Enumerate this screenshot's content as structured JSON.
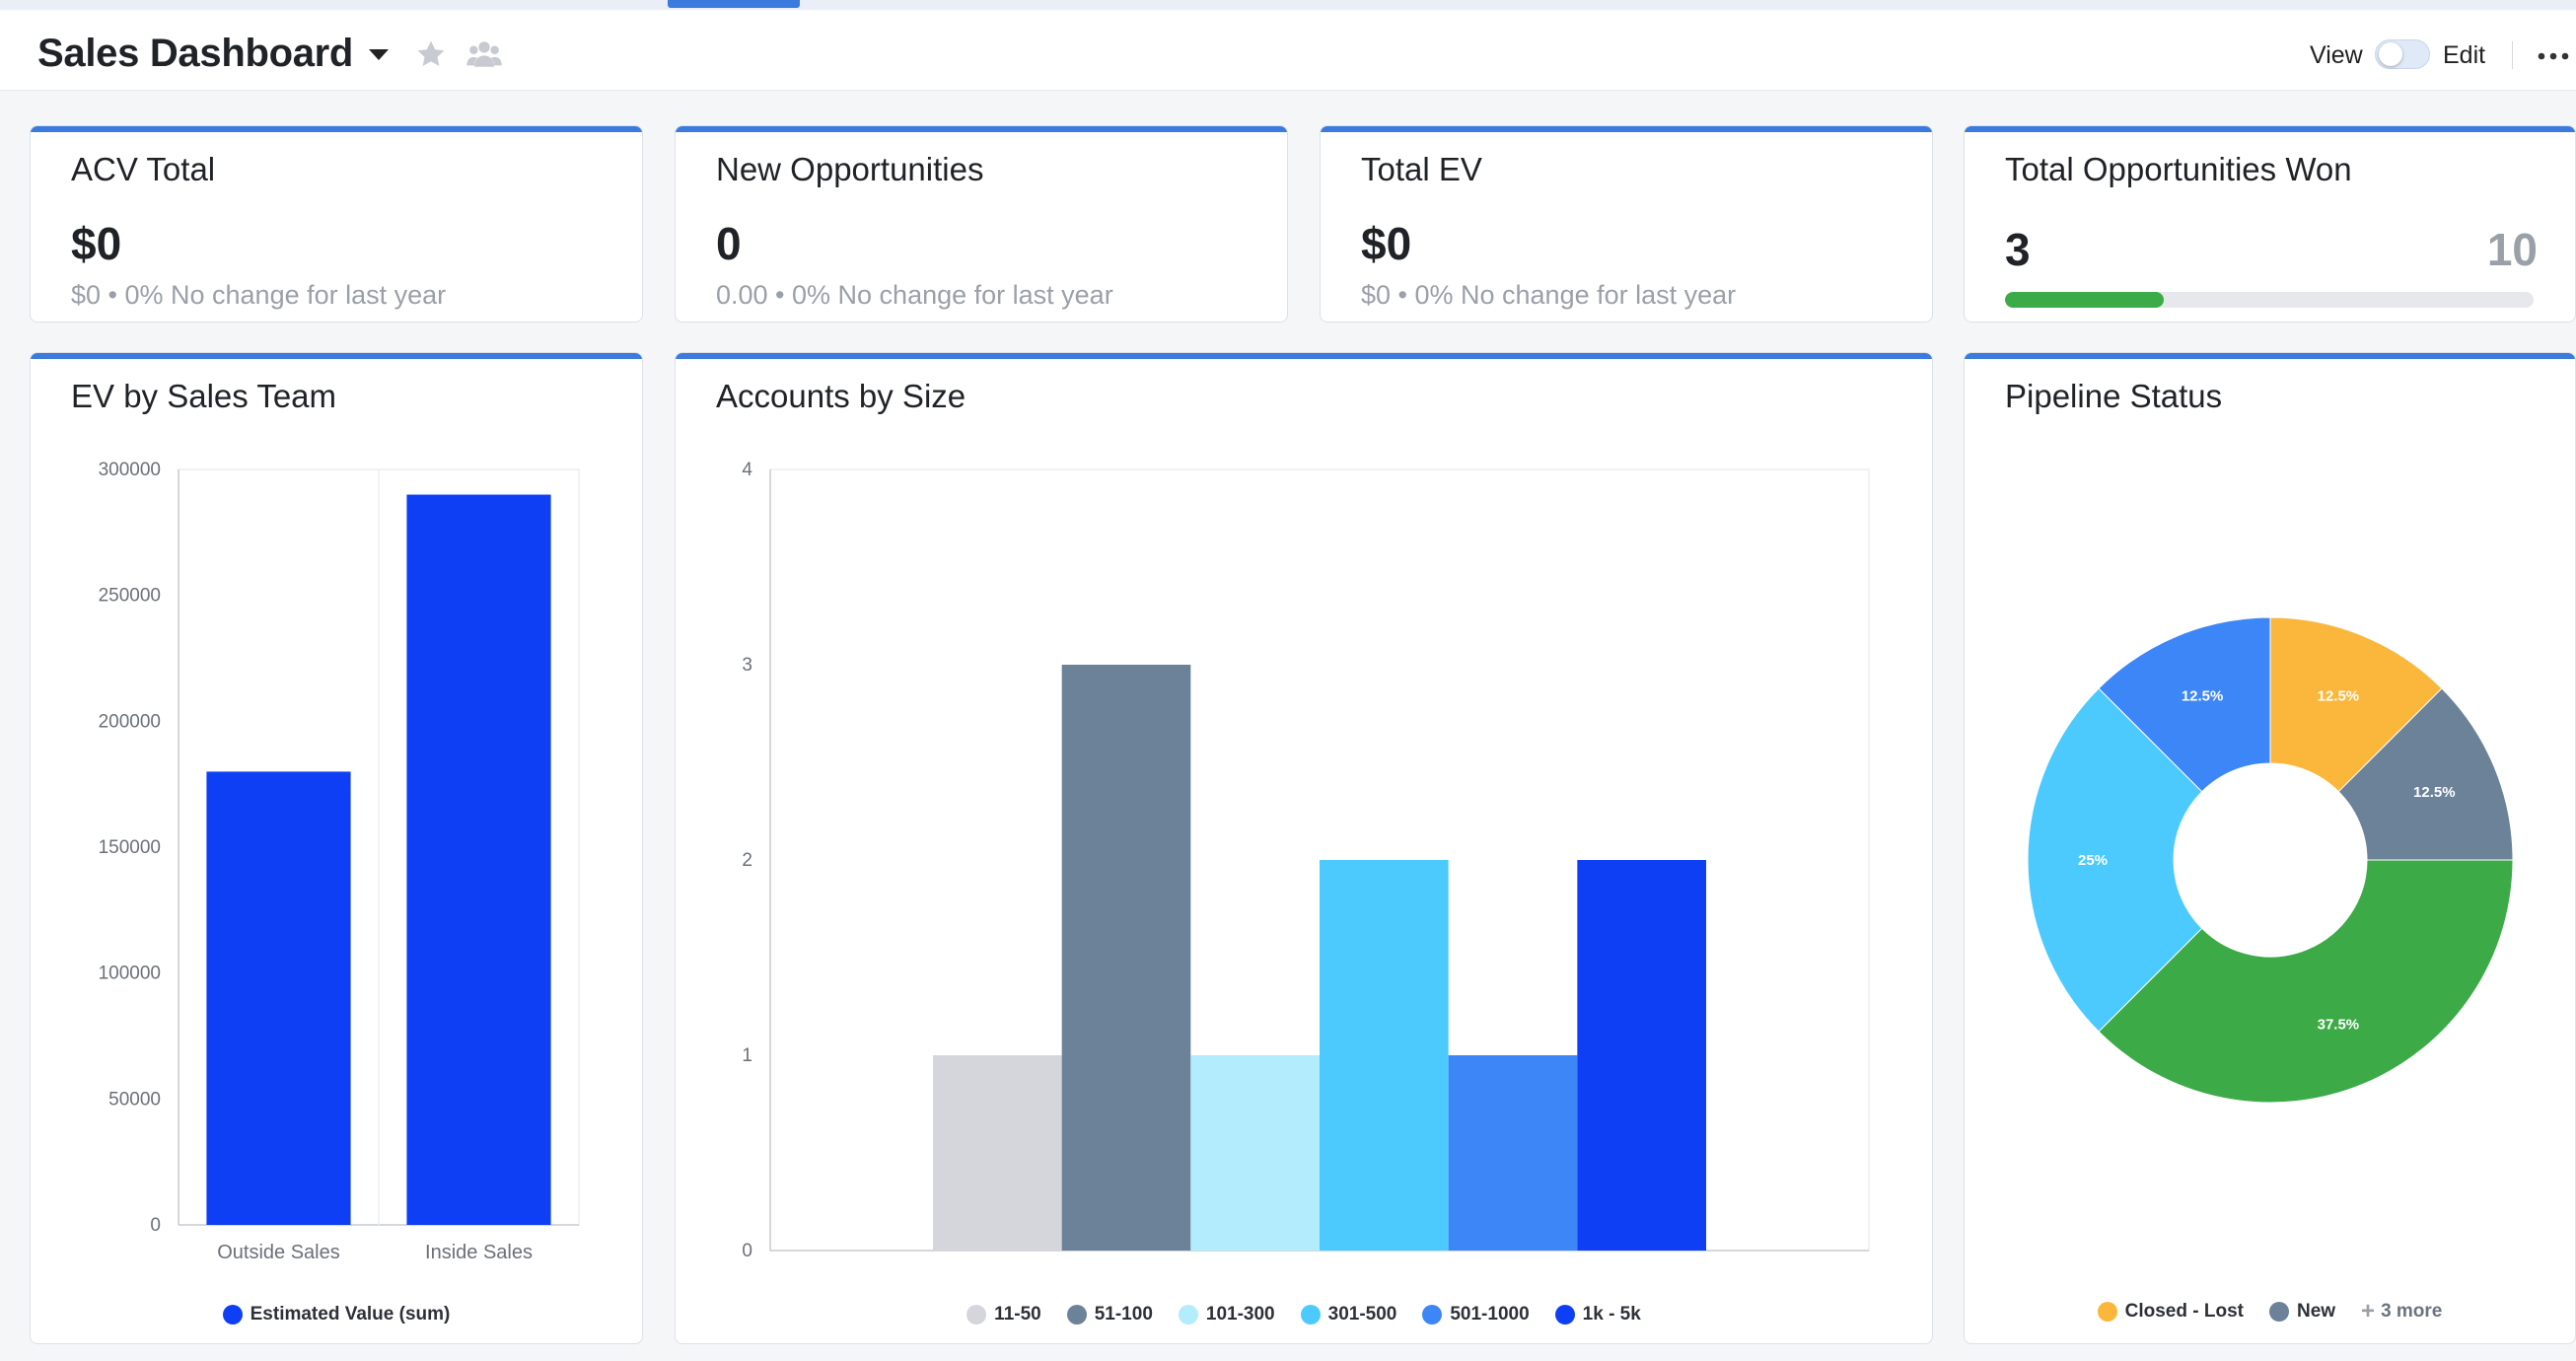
{
  "header": {
    "title": "Sales Dashboard",
    "view_label": "View",
    "edit_label": "Edit",
    "icons": [
      "chevron-down-icon",
      "star-icon",
      "people-icon",
      "more-icon"
    ]
  },
  "kpis": {
    "acv": {
      "title": "ACV Total",
      "value": "$0",
      "sub": "$0 • 0% No change for last year"
    },
    "new_opps": {
      "title": "New Opportunities",
      "value": "0",
      "sub": "0.00 • 0% No change for last year"
    },
    "total_ev": {
      "title": "Total EV",
      "value": "$0",
      "sub": "$0 • 0% No change for last year"
    },
    "won": {
      "title": "Total Opportunities Won",
      "current": "3",
      "target": "10",
      "progress": 0.3
    }
  },
  "colors": {
    "accent": "#3a7bdd",
    "progress": "#3cab47"
  },
  "chart_data": [
    {
      "id": "ev-by-team",
      "type": "bar",
      "title": "EV by Sales Team",
      "categories": [
        "Outside Sales",
        "Inside Sales"
      ],
      "series": [
        {
          "name": "Estimated Value (sum)",
          "values": [
            180000,
            290000
          ],
          "color": "#0f3ff5"
        }
      ],
      "yticks": [
        "0",
        "50000",
        "100000",
        "150000",
        "200000",
        "250000",
        "300000"
      ],
      "ylim": [
        0,
        300000
      ],
      "grid": true,
      "legend": "bottom"
    },
    {
      "id": "accounts-by-size",
      "type": "bar",
      "title": "Accounts by Size",
      "series": [
        {
          "name": "11-50",
          "values": [
            1
          ],
          "color": "#d5d6dc"
        },
        {
          "name": "51-100",
          "values": [
            3
          ],
          "color": "#6c8299"
        },
        {
          "name": "101-300",
          "values": [
            1
          ],
          "color": "#b2ecfd"
        },
        {
          "name": "301-500",
          "values": [
            2
          ],
          "color": "#4ccafd"
        },
        {
          "name": "501-1000",
          "values": [
            1
          ],
          "color": "#3d86f7"
        },
        {
          "name": "1k - 5k",
          "values": [
            2
          ],
          "color": "#0f3ff5"
        }
      ],
      "yticks": [
        "0",
        "1",
        "2",
        "3",
        "4"
      ],
      "ylim": [
        0,
        4
      ],
      "grid": true,
      "legend": "bottom"
    },
    {
      "id": "pipeline-status",
      "type": "pie",
      "title": "Pipeline Status",
      "slices": [
        {
          "name": "Closed - Lost",
          "value": 12.5,
          "label": "12.5%",
          "color": "#fbb73c"
        },
        {
          "name": "New",
          "value": 12.5,
          "label": "12.5%",
          "color": "#6c8299"
        },
        {
          "name": "",
          "value": 37.5,
          "label": "37.5%",
          "color": "#3cab47"
        },
        {
          "name": "",
          "value": 25,
          "label": "25%",
          "color": "#4ccafd"
        },
        {
          "name": "",
          "value": 12.5,
          "label": "12.5%",
          "color": "#3d86f7"
        }
      ],
      "legend_items": [
        {
          "name": "Closed - Lost",
          "color": "#fbb73c"
        },
        {
          "name": "New",
          "color": "#6c8299"
        }
      ],
      "legend_more": "3 more",
      "legend": "bottom"
    }
  ]
}
